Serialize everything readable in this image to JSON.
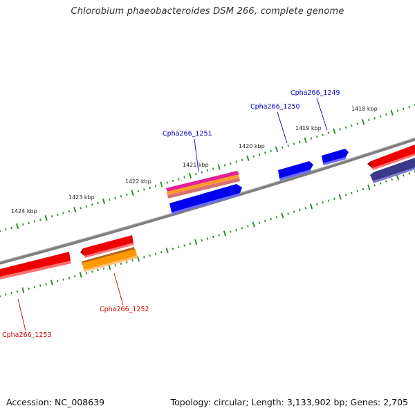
{
  "title": "Chlorobium phaeobacteroides DSM 266, complete genome",
  "footer": {
    "accession": "Accession: NC_008639",
    "topology": "Topology: circular; Length: 3,133,902 bp; Genes: 2,705"
  },
  "colors": {
    "backbone": "#7a7a7a",
    "tick": "#2e8b2e",
    "label_blue": "#0000cc",
    "label_red": "#cc0000"
  },
  "kbp_labels": [
    "1424 kbp",
    "1423 kbp",
    "1422 kbp",
    "1421 kbp",
    "1420 kbp",
    "1419 kbp",
    "1418 kbp"
  ],
  "gene_labels": [
    {
      "name": "Cpha266_1249",
      "strand": "forward"
    },
    {
      "name": "Cpha266_1250",
      "strand": "forward"
    },
    {
      "name": "Cpha266_1251",
      "strand": "forward"
    },
    {
      "name": "Cpha266_1252",
      "strand": "reverse"
    },
    {
      "name": "Cpha266_1253",
      "strand": "reverse"
    }
  ]
}
